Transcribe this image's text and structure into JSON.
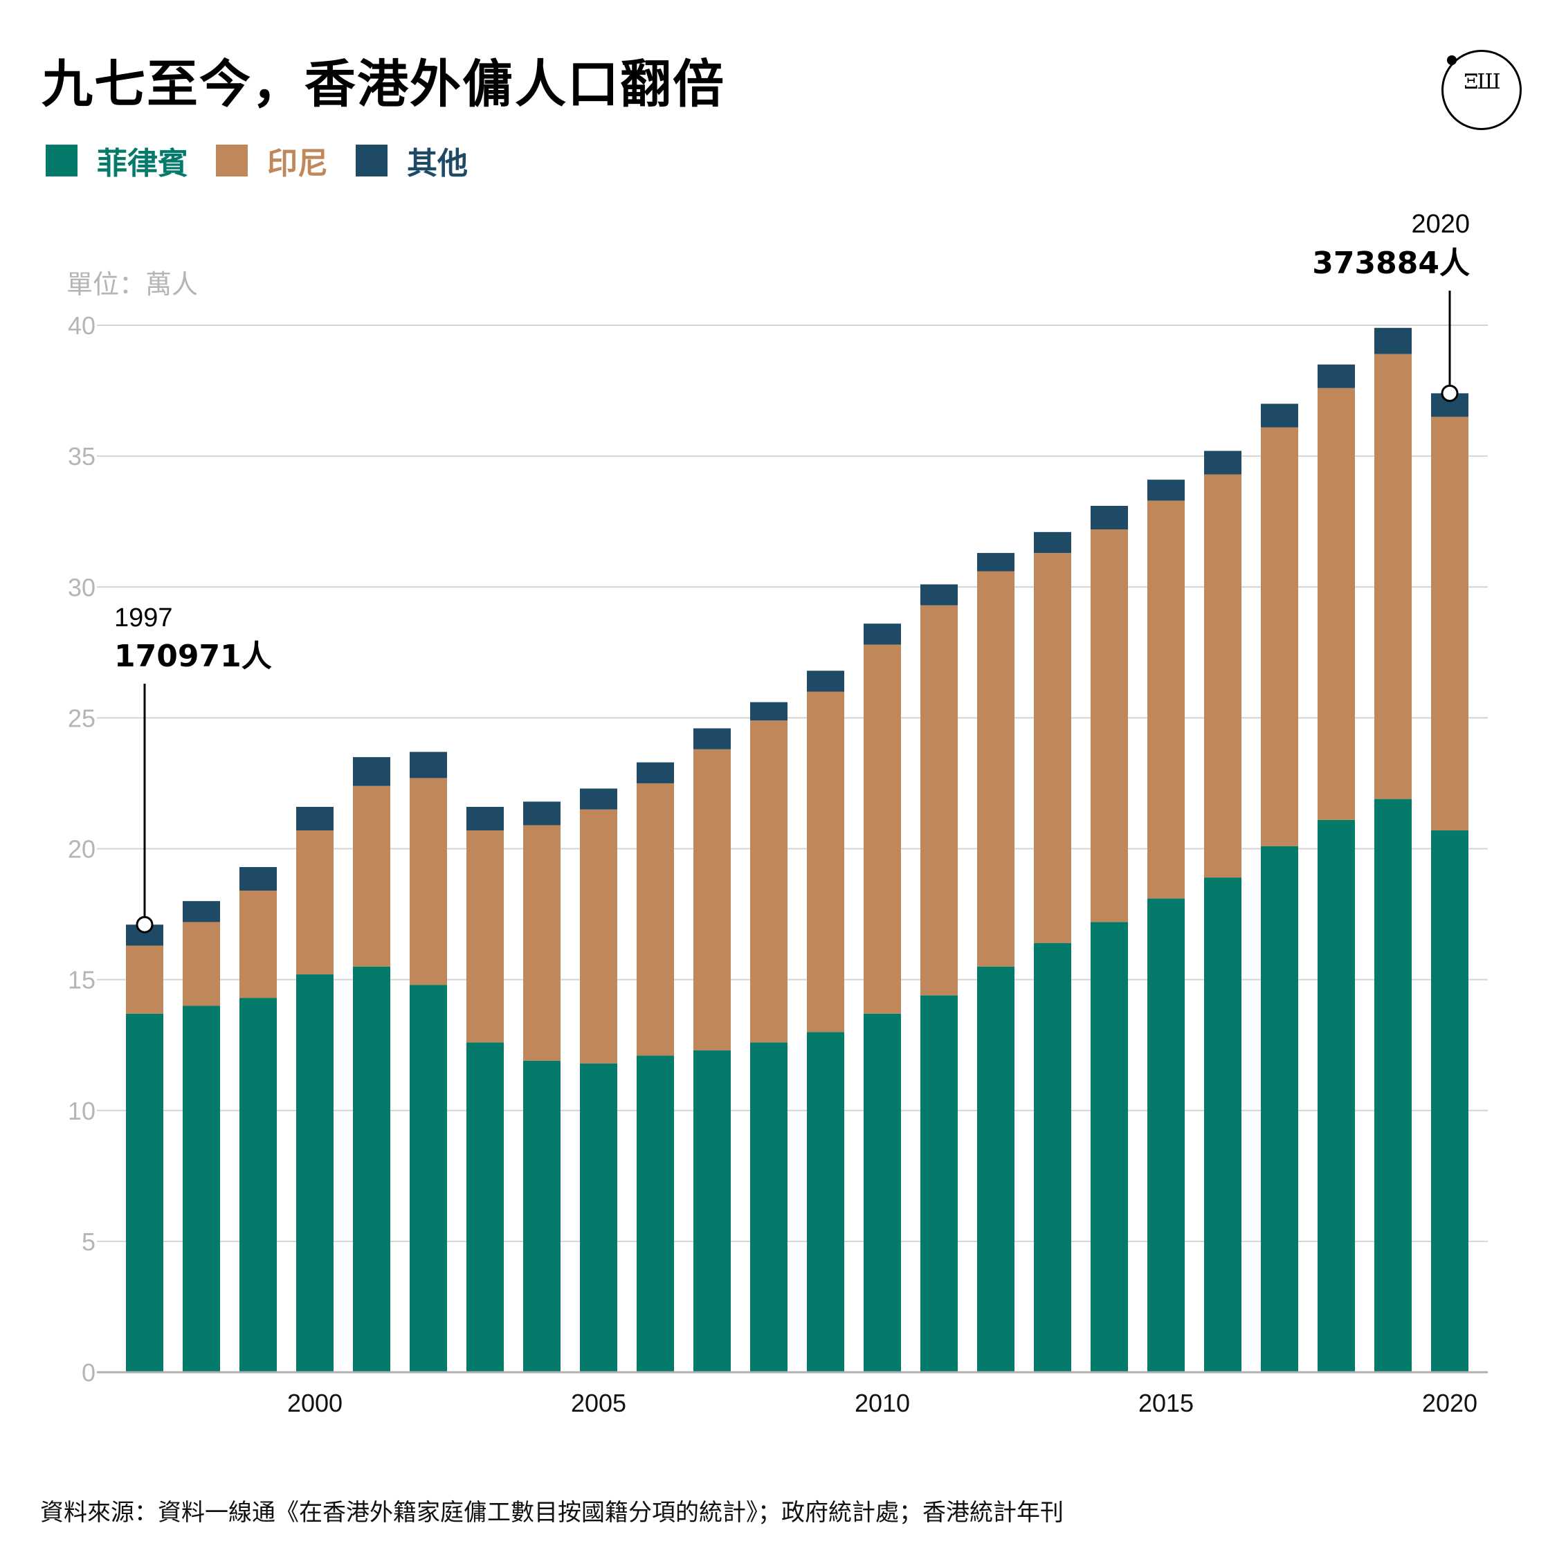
{
  "title": "九七至今，香港外傭人口翻倍",
  "logo": {
    "icon": "initium-logo-icon",
    "text": "ΞШ"
  },
  "legend": [
    {
      "label": "菲律賓",
      "color": "#037a6a"
    },
    {
      "label": "印尼",
      "color": "#c0875a"
    },
    {
      "label": "其他",
      "color": "#1f4a66"
    }
  ],
  "unit_label": "單位：萬人",
  "source": "資料來源：資料一線通《在香港外籍家庭傭工數目按國籍分項的統計》；政府統計處；香港統計年刊",
  "chart_data": {
    "type": "bar",
    "stacked": true,
    "x": [
      1997,
      1998,
      1999,
      2000,
      2001,
      2002,
      2003,
      2004,
      2005,
      2006,
      2007,
      2008,
      2009,
      2010,
      2011,
      2012,
      2013,
      2014,
      2015,
      2016,
      2017,
      2018,
      2019,
      2020
    ],
    "x_ticks": [
      2000,
      2005,
      2010,
      2015,
      2020
    ],
    "y_ticks": [
      0,
      5,
      10,
      15,
      20,
      25,
      30,
      35,
      40
    ],
    "ylim": [
      0,
      40
    ],
    "grid": true,
    "series": [
      {
        "name": "菲律賓",
        "color": "#037a6a",
        "values": [
          13.7,
          14.0,
          14.3,
          15.2,
          15.5,
          14.8,
          12.6,
          11.9,
          11.8,
          12.1,
          12.3,
          12.6,
          13.0,
          13.7,
          14.4,
          15.5,
          16.4,
          17.2,
          18.1,
          18.9,
          20.1,
          21.1,
          21.9,
          20.7
        ]
      },
      {
        "name": "印尼",
        "color": "#c0875a",
        "values": [
          2.6,
          3.2,
          4.1,
          5.5,
          6.9,
          7.9,
          8.1,
          9.0,
          9.7,
          10.4,
          11.5,
          12.3,
          13.0,
          14.1,
          14.9,
          15.1,
          14.9,
          15.0,
          15.2,
          15.4,
          16.0,
          16.5,
          17.0,
          15.8
        ]
      },
      {
        "name": "其他",
        "color": "#1f4a66",
        "values": [
          0.8,
          0.8,
          0.9,
          0.9,
          1.1,
          1.0,
          0.9,
          0.9,
          0.8,
          0.8,
          0.8,
          0.7,
          0.8,
          0.8,
          0.8,
          0.7,
          0.8,
          0.9,
          0.8,
          0.9,
          0.9,
          0.9,
          1.0,
          0.9
        ]
      }
    ],
    "annotations": [
      {
        "year": "1997",
        "value": "170971人",
        "x": 1997,
        "y": 17.1
      },
      {
        "year": "2020",
        "value": "373884人",
        "x": 2020,
        "y": 37.4
      }
    ]
  }
}
